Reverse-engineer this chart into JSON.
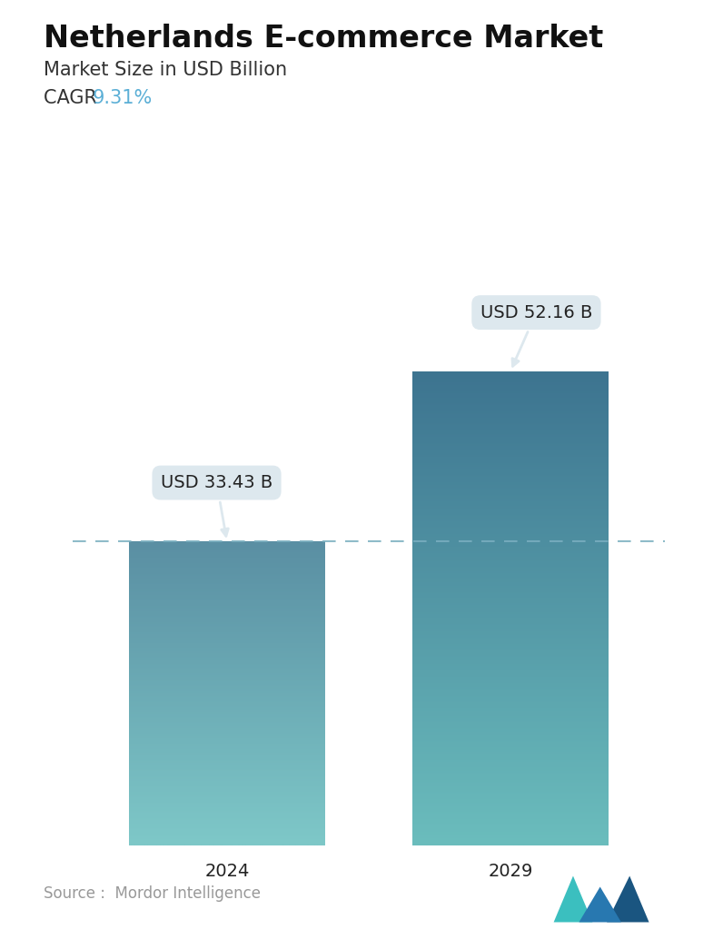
{
  "title": "Netherlands E-commerce Market",
  "subtitle": "Market Size in USD Billion",
  "cagr_label": "CAGR ",
  "cagr_value": "9.31%",
  "cagr_color": "#5BAFD6",
  "categories": [
    "2024",
    "2029"
  ],
  "values": [
    33.43,
    52.16
  ],
  "value_labels": [
    "USD 33.43 B",
    "USD 52.16 B"
  ],
  "bar_top_colors": [
    "#5A8FA3",
    "#3D7490"
  ],
  "bar_bottom_colors": [
    "#7EC8C8",
    "#6BBDBD"
  ],
  "dashed_line_color": "#7AAFC0",
  "dashed_line_y": 33.43,
  "annotation_bg_color": "#DDE8EE",
  "annotation_text_color": "#222222",
  "source_text": "Source :  Mordor Intelligence",
  "source_color": "#999999",
  "background_color": "#FFFFFF",
  "ylim": [
    0,
    62
  ],
  "bar_width": 0.38,
  "title_fontsize": 24,
  "subtitle_fontsize": 15,
  "cagr_fontsize": 15,
  "tick_fontsize": 14,
  "annotation_fontsize": 14,
  "source_fontsize": 12,
  "logo_teal": "#3BBFBF",
  "logo_blue": "#2878B0",
  "logo_dark": "#1A5580"
}
